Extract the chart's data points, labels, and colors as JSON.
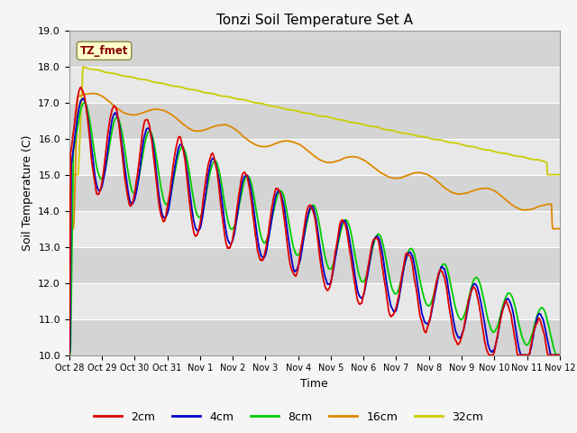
{
  "title": "Tonzi Soil Temperature Set A",
  "xlabel": "Time",
  "ylabel": "Soil Temperature (C)",
  "ylim": [
    10.0,
    19.0
  ],
  "yticks": [
    10.0,
    11.0,
    12.0,
    13.0,
    14.0,
    15.0,
    16.0,
    17.0,
    18.0,
    19.0
  ],
  "xtick_labels": [
    "Oct 28",
    "Oct 29",
    "Oct 30",
    "Oct 31",
    "Nov 1",
    "Nov 2",
    "Nov 3",
    "Nov 4",
    "Nov 5",
    "Nov 6",
    "Nov 7",
    "Nov 8",
    "Nov 9",
    "Nov 10",
    "Nov 11",
    "Nov 12"
  ],
  "colors": {
    "2cm": "#dd0000",
    "4cm": "#0000cc",
    "8cm": "#00cc00",
    "16cm": "#dd8800",
    "32cm": "#cccc00"
  },
  "legend_label": "TZ_fmet",
  "legend_box_facecolor": "#ffffcc",
  "legend_text_color": "#880000",
  "legend_box_edgecolor": "#888844",
  "fig_facecolor": "#f5f5f5",
  "plot_facecolor": "#e8e8e8",
  "band_dark": "#d4d4d4",
  "band_light": "#e8e8e8",
  "n_points": 720
}
